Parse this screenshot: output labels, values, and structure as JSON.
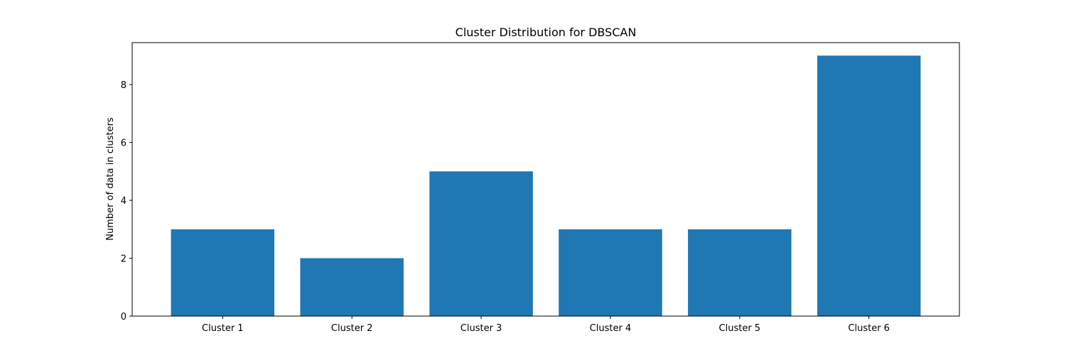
{
  "chart_data": {
    "type": "bar",
    "title": "Cluster Distribution for DBSCAN",
    "xlabel": "",
    "ylabel": "Number of data in clusters",
    "categories": [
      "Cluster 1",
      "Cluster 2",
      "Cluster 3",
      "Cluster 4",
      "Cluster 5",
      "Cluster 6"
    ],
    "values": [
      3,
      2,
      5,
      3,
      3,
      9
    ],
    "ylim": [
      0,
      9.45
    ],
    "yticks": [
      "0",
      "2",
      "4",
      "6",
      "8"
    ],
    "grid": false,
    "bar_color": "#1f77b4"
  }
}
